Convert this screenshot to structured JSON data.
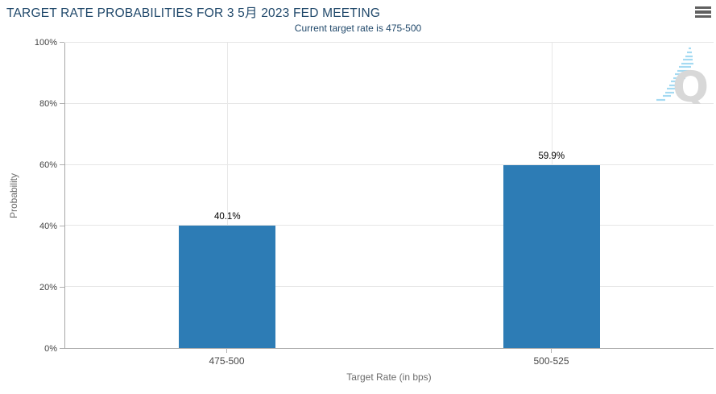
{
  "header": {
    "title": "TARGET RATE PROBABILITIES FOR 3 5月 2023 FED MEETING",
    "subtitle": "Current target rate is 475-500",
    "menu_icon": "hamburger-icon"
  },
  "colors": {
    "title_text": "#21496b",
    "bar": "#2d7cb5",
    "gridline": "#e6e6e6",
    "axis_line": "#a6a6a6",
    "tick_label": "#454545",
    "watermark_gray": "#d8d8d8",
    "watermark_blue": "#a5daf2"
  },
  "chart_data": {
    "type": "bar",
    "title": "TARGET RATE PROBABILITIES FOR 3 5月 2023 FED MEETING",
    "subtitle": "Current target rate is 475-500",
    "categories": [
      "475-500",
      "500-525"
    ],
    "values": [
      40.1,
      59.9
    ],
    "value_labels": [
      "40.1%",
      "59.9%"
    ],
    "xlabel": "Target Rate (in bps)",
    "ylabel": "Probability",
    "ylim": [
      0,
      100
    ],
    "yticks": [
      0,
      20,
      40,
      60,
      80,
      100
    ],
    "ytick_labels": [
      "0%",
      "20%",
      "40%",
      "60%",
      "80%",
      "100%"
    ],
    "grid": true,
    "legend": "none",
    "bar_color": "#2d7cb5"
  },
  "watermark": {
    "icon": "q-logo"
  }
}
